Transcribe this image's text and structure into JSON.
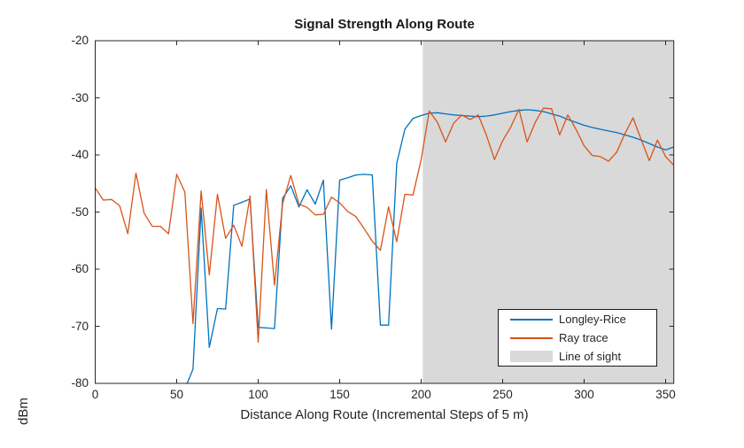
{
  "chart_data": {
    "type": "line",
    "title": "Signal Strength Along Route",
    "xlabel": "Distance Along Route (Incremental Steps of 5 m)",
    "ylabel": "dBm",
    "xlim": [
      0,
      355
    ],
    "ylim": [
      -80,
      -20
    ],
    "xticks": [
      0,
      50,
      100,
      150,
      200,
      250,
      300,
      350
    ],
    "yticks": [
      -20,
      -30,
      -40,
      -50,
      -60,
      -70,
      -80
    ],
    "grid": false,
    "x_step_m": 5,
    "legend": {
      "position": "southeast",
      "entries": [
        "Longley-Rice",
        "Ray trace",
        "Line of sight"
      ]
    },
    "colors": {
      "longley_rice": "#0072BD",
      "ray_trace": "#D95319",
      "line_of_sight_fill": "#D9D9D9",
      "axis": "#262626"
    },
    "los_region": {
      "label": "Line of sight",
      "x_start": 201,
      "x_end": 355
    },
    "series": [
      {
        "name": "Longley-Rice",
        "color": "#0072BD",
        "x_start": 55,
        "x_step": 5,
        "values": [
          -81,
          -77.5,
          -49.3,
          -73.7,
          -66.9,
          -67.0,
          -48.8,
          -48.3,
          -47.7,
          -70.2,
          -70.3,
          -70.4,
          -47.6,
          -45.4,
          -49.1,
          -46.1,
          -48.6,
          -44.4,
          -70.5,
          -44.4,
          -44.0,
          -43.5,
          -43.4,
          -43.5,
          -69.8,
          -69.8,
          -41.5,
          -35.5,
          -33.6,
          -33.1,
          -32.7,
          -32.6,
          -32.8,
          -33.0,
          -33.1,
          -33.2,
          -33.3,
          -33.2,
          -33.0,
          -32.7,
          -32.4,
          -32.2,
          -32.1,
          -32.2,
          -32.4,
          -32.8,
          -33.2,
          -33.8,
          -34.3,
          -34.8,
          -35.2,
          -35.5,
          -35.8,
          -36.1,
          -36.5,
          -36.9,
          -37.4,
          -38.0,
          -38.6,
          -39.1,
          -38.6
        ]
      },
      {
        "name": "Ray trace",
        "color": "#D95319",
        "x_start": 0,
        "x_step": 5,
        "values": [
          -45.8,
          -47.9,
          -47.8,
          -48.9,
          -53.8,
          -43.2,
          -50.2,
          -52.5,
          -52.5,
          -53.8,
          -43.4,
          -46.5,
          -69.5,
          -46.3,
          -61.0,
          -46.9,
          -54.6,
          -52.3,
          -56.0,
          -47.2,
          -72.8,
          -46.1,
          -62.8,
          -48.5,
          -43.6,
          -48.6,
          -49.2,
          -50.5,
          -50.4,
          -47.4,
          -48.4,
          -49.9,
          -50.8,
          -52.9,
          -55.1,
          -56.7,
          -49.1,
          -55.2,
          -46.9,
          -47.0,
          -40.8,
          -32.3,
          -34.3,
          -37.7,
          -34.4,
          -33.0,
          -33.8,
          -33.0,
          -36.5,
          -40.8,
          -37.5,
          -35.1,
          -32.0,
          -37.7,
          -34.3,
          -31.8,
          -31.9,
          -36.5,
          -33.0,
          -35.5,
          -38.4,
          -40.1,
          -40.3,
          -41.1,
          -39.5,
          -36.3,
          -33.5,
          -37.3,
          -41.0,
          -37.4,
          -40.3,
          -41.8
        ]
      }
    ]
  }
}
